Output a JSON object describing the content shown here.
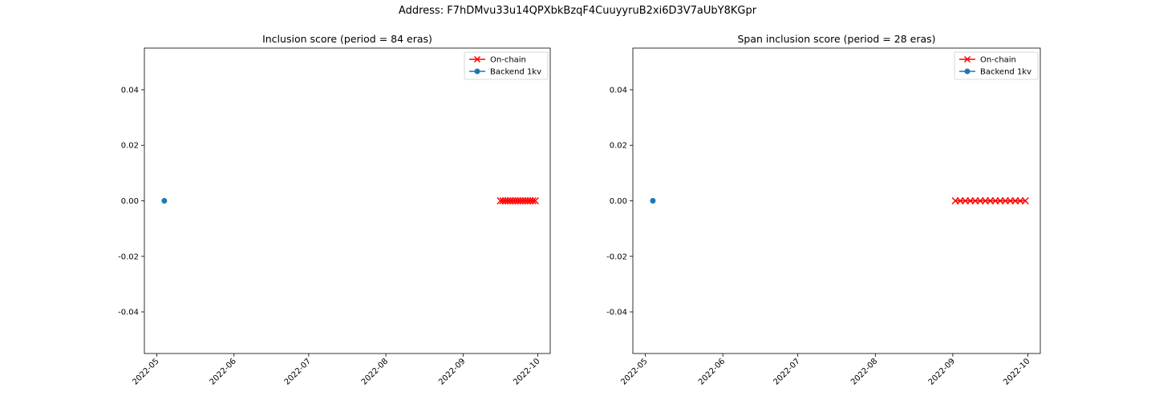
{
  "suptitle": "Address: F7hDMvu33u14QPXbkBzqF4CuuyyruB2xi6D3V7aUbY8KGpr",
  "colors": {
    "onchain": "#ff0000",
    "backend": "#1f77b4"
  },
  "chart_data": [
    {
      "type": "line",
      "title": "Inclusion score (period = 84 eras)",
      "xlabel": "",
      "ylabel": "",
      "xlim": [
        "2022-04-26",
        "2022-10-06"
      ],
      "ylim": [
        -0.055,
        0.055
      ],
      "xticks": [
        "2022-05",
        "2022-06",
        "2022-07",
        "2022-08",
        "2022-09",
        "2022-10"
      ],
      "yticks": [
        -0.04,
        -0.02,
        0.0,
        0.02,
        0.04
      ],
      "legend": "top-right",
      "grid": false,
      "series": [
        {
          "name": "On-chain",
          "marker": "x",
          "color": "#ff0000",
          "x": [
            "2022-09-16",
            "2022-09-17",
            "2022-09-18",
            "2022-09-19",
            "2022-09-20",
            "2022-09-21",
            "2022-09-22",
            "2022-09-23",
            "2022-09-24",
            "2022-09-25",
            "2022-09-26",
            "2022-09-27",
            "2022-09-28",
            "2022-09-29",
            "2022-09-30"
          ],
          "y": [
            0,
            0,
            0,
            0,
            0,
            0,
            0,
            0,
            0,
            0,
            0,
            0,
            0,
            0,
            0
          ]
        },
        {
          "name": "Backend 1kv",
          "marker": "o",
          "color": "#1f77b4",
          "x": [
            "2022-05-04"
          ],
          "y": [
            0
          ]
        }
      ]
    },
    {
      "type": "line",
      "title": "Span inclusion score (period = 28 eras)",
      "xlabel": "",
      "ylabel": "",
      "xlim": [
        "2022-04-26",
        "2022-10-06"
      ],
      "ylim": [
        -0.055,
        0.055
      ],
      "xticks": [
        "2022-05",
        "2022-06",
        "2022-07",
        "2022-08",
        "2022-09",
        "2022-10"
      ],
      "yticks": [
        -0.04,
        -0.02,
        0.0,
        0.02,
        0.04
      ],
      "legend": "top-right",
      "grid": false,
      "series": [
        {
          "name": "On-chain",
          "marker": "x",
          "color": "#ff0000",
          "x": [
            "2022-09-02",
            "2022-09-04",
            "2022-09-06",
            "2022-09-08",
            "2022-09-10",
            "2022-09-12",
            "2022-09-14",
            "2022-09-16",
            "2022-09-18",
            "2022-09-20",
            "2022-09-22",
            "2022-09-24",
            "2022-09-26",
            "2022-09-28",
            "2022-09-30"
          ],
          "y": [
            0,
            0,
            0,
            0,
            0,
            0,
            0,
            0,
            0,
            0,
            0,
            0,
            0,
            0,
            0
          ]
        },
        {
          "name": "Backend 1kv",
          "marker": "o",
          "color": "#1f77b4",
          "x": [
            "2022-05-04"
          ],
          "y": [
            0
          ]
        }
      ]
    }
  ]
}
